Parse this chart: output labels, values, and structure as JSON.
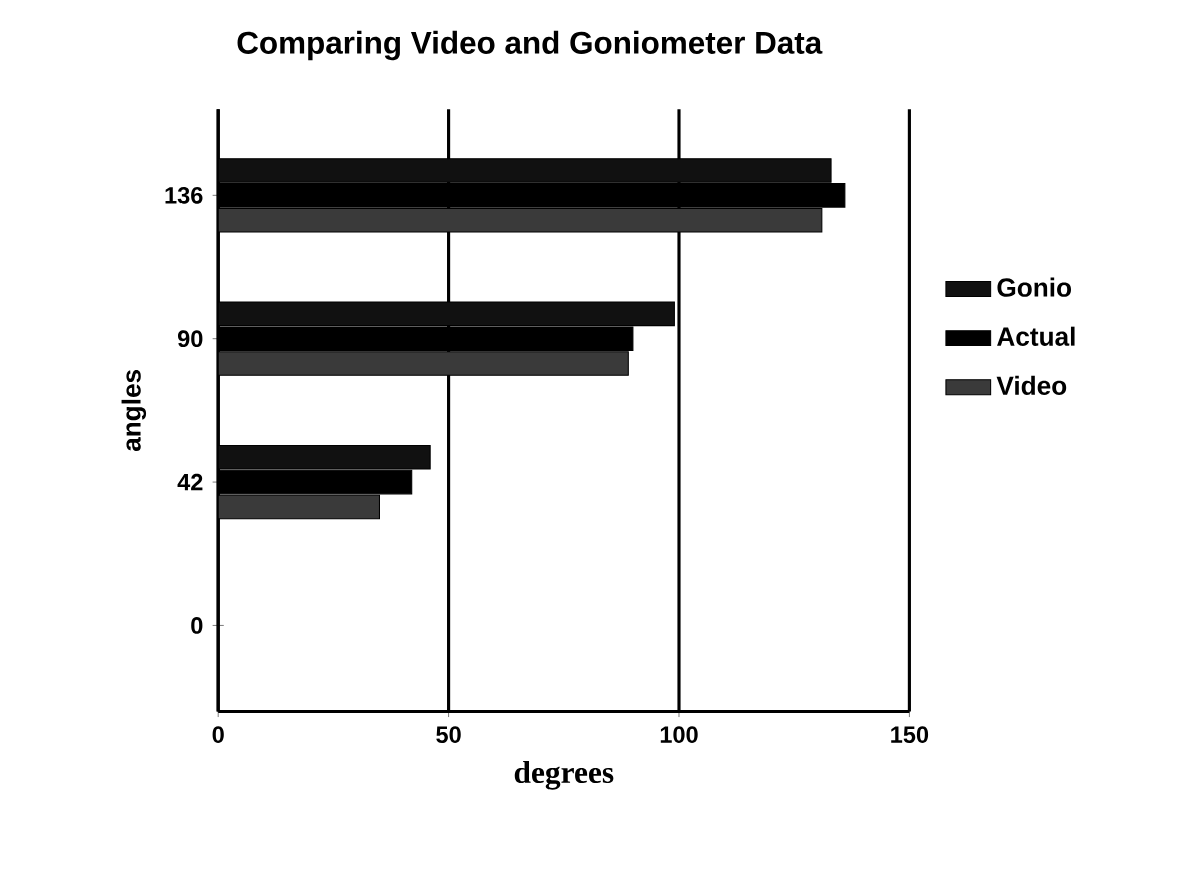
{
  "chart_data": {
    "type": "bar",
    "orientation": "horizontal",
    "title": "Comparing Video and Goniometer Data",
    "xlabel": "degrees",
    "ylabel": "angles",
    "categories": [
      "136",
      "90",
      "42",
      "0"
    ],
    "series": [
      {
        "name": "Gonio",
        "color": "#111111",
        "values": [
          133,
          99,
          46,
          null
        ]
      },
      {
        "name": "Actual",
        "color": "#000000",
        "values": [
          136,
          90,
          42,
          null
        ]
      },
      {
        "name": "Video",
        "color": "#3a3a3a",
        "values": [
          131,
          89,
          35,
          null
        ]
      }
    ],
    "xlim": [
      0,
      150
    ],
    "xticks": [
      0,
      50,
      100,
      150
    ],
    "grid": "x",
    "legend": "right"
  }
}
